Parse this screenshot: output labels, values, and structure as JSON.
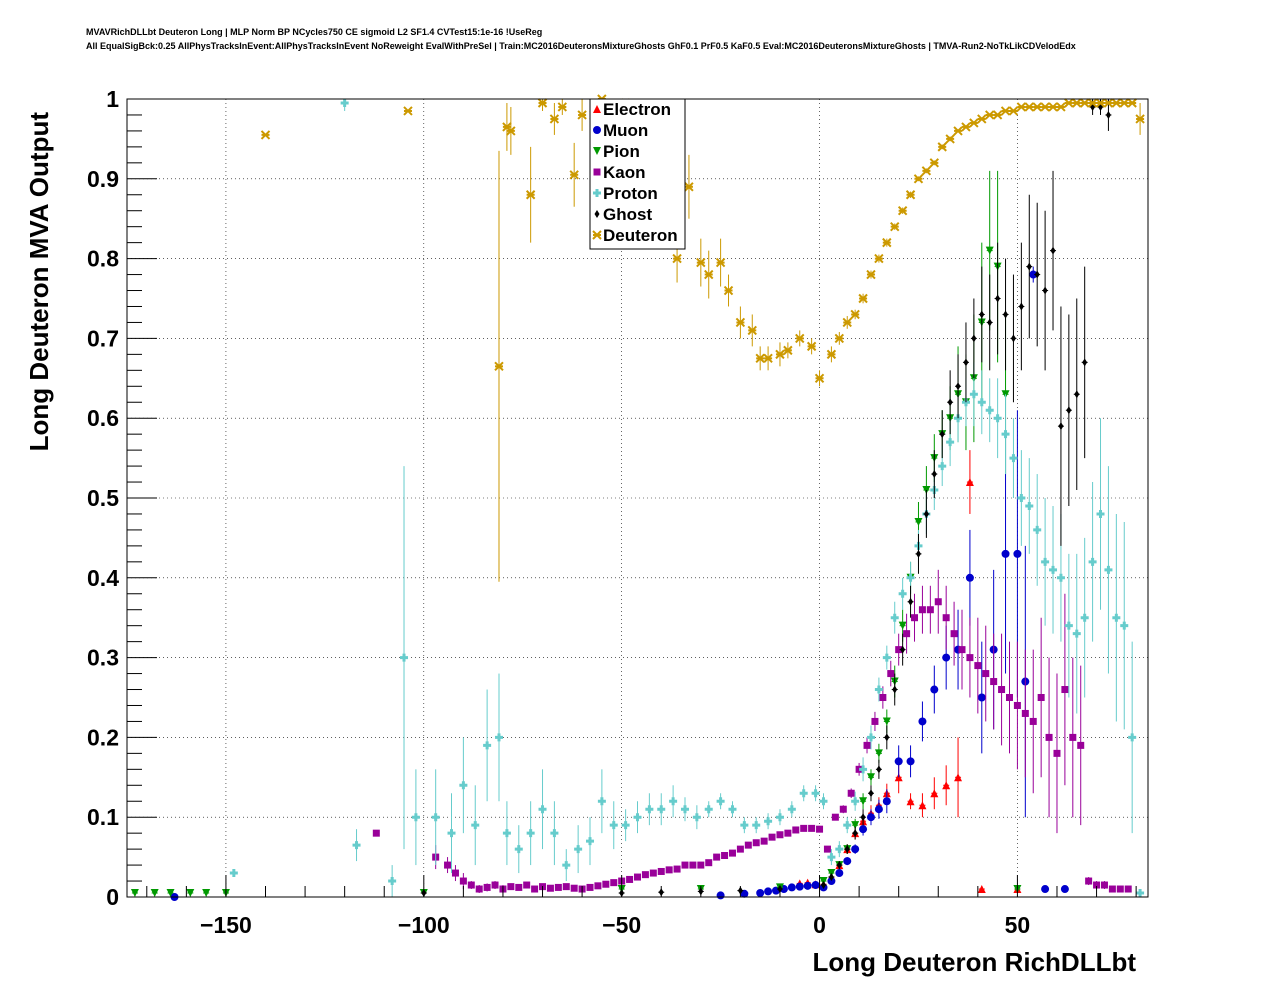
{
  "header": {
    "line1": "MVAVRichDLLbt Deuteron Long | MLP Norm BP NCycles750 CE sigmoid L2 SF1.4 CVTest15:1e-16 !UseReg",
    "line2": "All EqualSigBck:0.25 AllPhysTracksInEvent:AllPhysTracksInEvent NoReweight EvalWithPreSel | Train:MC2016DeuteronsMixtureGhosts GhF0.1 PrF0.5 KaF0.5 Eval:MC2016DeuteronsMixtureGhosts | TMVA-Run2-NoTkLikCDVelodEdx"
  },
  "chart_data": {
    "type": "scatter",
    "xlabel": "Long Deuteron RichDLLbt",
    "ylabel": "Long Deuteron MVA Output",
    "xlim": [
      -175,
      83
    ],
    "ylim": [
      0,
      1
    ],
    "x_ticks": [
      -150,
      -100,
      -50,
      0,
      50
    ],
    "x_tick_labels": [
      "−150",
      "−100",
      "−50",
      "0",
      "50"
    ],
    "y_ticks": [
      0,
      0.1,
      0.2,
      0.3,
      0.4,
      0.5,
      0.6,
      0.7,
      0.8,
      0.9,
      1
    ],
    "y_tick_labels": [
      "0",
      "0.1",
      "0.2",
      "0.3",
      "0.4",
      "0.5",
      "0.6",
      "0.7",
      "0.8",
      "0.9",
      "1"
    ],
    "grid": true,
    "legend_position": "top-center",
    "series": [
      {
        "name": "Electron",
        "color": "#ff0000",
        "marker": "triangle-up",
        "x": [
          -5,
          -3,
          -1,
          1,
          3,
          5,
          7,
          9,
          11,
          13,
          15,
          17,
          20,
          23,
          26,
          29,
          32,
          35,
          38,
          41,
          50
        ],
        "y": [
          0.017,
          0.018,
          0.016,
          0.016,
          0.025,
          0.04,
          0.06,
          0.08,
          0.095,
          0.105,
          0.115,
          0.13,
          0.15,
          0.12,
          0.115,
          0.13,
          0.14,
          0.15,
          0.52,
          0.01,
          0.01
        ],
        "err": [
          0.003,
          0.003,
          0.003,
          0.003,
          0.004,
          0.005,
          0.006,
          0.008,
          0.01,
          0.01,
          0.01,
          0.012,
          0.02,
          0.01,
          0.015,
          0.02,
          0.025,
          0.05,
          0.04,
          0,
          0
        ]
      },
      {
        "name": "Muon",
        "color": "#0000cc",
        "marker": "circle",
        "x": [
          -163,
          -25,
          -19,
          -15,
          -13,
          -11,
          -9,
          -7,
          -5,
          -3,
          -1,
          1,
          3,
          5,
          7,
          9,
          11,
          13,
          15,
          17,
          20,
          23,
          26,
          29,
          32,
          35,
          38,
          41,
          44,
          47,
          50,
          52,
          54,
          57,
          62
        ],
        "y": [
          0,
          0.002,
          0.004,
          0.005,
          0.007,
          0.008,
          0.01,
          0.012,
          0.013,
          0.014,
          0.015,
          0.012,
          0.02,
          0.03,
          0.045,
          0.06,
          0.085,
          0.1,
          0.11,
          0.12,
          0.17,
          0.17,
          0.22,
          0.26,
          0.3,
          0.31,
          0.4,
          0.25,
          0.31,
          0.43,
          0.43,
          0.27,
          0.78,
          0.01,
          0.01
        ],
        "err": [
          0,
          0.001,
          0.001,
          0.001,
          0.001,
          0.001,
          0.002,
          0.002,
          0.002,
          0.002,
          0.002,
          0.002,
          0.003,
          0.004,
          0.005,
          0.006,
          0.008,
          0.01,
          0.012,
          0.015,
          0.02,
          0.02,
          0.025,
          0.03,
          0.04,
          0.05,
          0.06,
          0.07,
          0.1,
          0.15,
          0.18,
          0.17,
          0.01,
          0,
          0
        ]
      },
      {
        "name": "Pion",
        "color": "#009900",
        "marker": "triangle-down",
        "x": [
          -173,
          -168,
          -164,
          -159,
          -155,
          -150,
          -100,
          -50,
          -30,
          -10,
          1,
          3,
          5,
          7,
          9,
          11,
          13,
          15,
          17,
          19,
          21,
          23,
          25,
          27,
          29,
          31,
          33,
          35,
          37,
          39,
          41,
          43,
          45,
          47,
          50
        ],
        "y": [
          0.005,
          0.005,
          0.005,
          0.005,
          0.005,
          0.005,
          0.005,
          0.01,
          0.01,
          0.012,
          0.02,
          0.03,
          0.04,
          0.06,
          0.09,
          0.12,
          0.15,
          0.18,
          0.22,
          0.27,
          0.34,
          0.4,
          0.47,
          0.51,
          0.55,
          0.58,
          0.6,
          0.63,
          0.62,
          0.65,
          0.72,
          0.81,
          0.79,
          0.63,
          0.01
        ],
        "err": [
          0,
          0,
          0,
          0,
          0,
          0,
          0,
          0.002,
          0.002,
          0.002,
          0.003,
          0.004,
          0.005,
          0.006,
          0.008,
          0.01,
          0.01,
          0.012,
          0.015,
          0.02,
          0.02,
          0.02,
          0.025,
          0.03,
          0.03,
          0.03,
          0.04,
          0.06,
          0.06,
          0.08,
          0.1,
          0.1,
          0.12,
          0.1,
          0
        ]
      },
      {
        "name": "Kaon",
        "color": "#990099",
        "marker": "square",
        "x": [
          -112,
          -97,
          -94,
          -92,
          -90,
          -88,
          -86,
          -84,
          -82,
          -80,
          -78,
          -76,
          -74,
          -72,
          -70,
          -68,
          -66,
          -64,
          -62,
          -60,
          -58,
          -56,
          -54,
          -52,
          -50,
          -48,
          -46,
          -44,
          -42,
          -40,
          -38,
          -36,
          -34,
          -32,
          -30,
          -28,
          -26,
          -24,
          -22,
          -20,
          -18,
          -16,
          -14,
          -12,
          -10,
          -8,
          -6,
          -4,
          -2,
          0,
          2,
          4,
          6,
          8,
          10,
          12,
          14,
          16,
          18,
          20,
          22,
          24,
          26,
          28,
          30,
          32,
          34,
          36,
          38,
          40,
          42,
          44,
          46,
          48,
          50,
          52,
          54,
          56,
          58,
          60,
          62,
          64,
          66,
          68,
          70,
          72,
          74,
          76,
          78
        ],
        "y": [
          0.08,
          0.05,
          0.04,
          0.03,
          0.02,
          0.015,
          0.01,
          0.012,
          0.015,
          0.01,
          0.013,
          0.012,
          0.015,
          0.01,
          0.013,
          0.011,
          0.012,
          0.013,
          0.011,
          0.01,
          0.012,
          0.014,
          0.016,
          0.018,
          0.02,
          0.022,
          0.025,
          0.028,
          0.03,
          0.032,
          0.034,
          0.035,
          0.04,
          0.04,
          0.04,
          0.043,
          0.05,
          0.052,
          0.055,
          0.06,
          0.065,
          0.068,
          0.07,
          0.075,
          0.078,
          0.08,
          0.084,
          0.086,
          0.086,
          0.085,
          0.06,
          0.1,
          0.11,
          0.13,
          0.16,
          0.19,
          0.22,
          0.25,
          0.28,
          0.31,
          0.33,
          0.35,
          0.36,
          0.36,
          0.37,
          0.35,
          0.33,
          0.31,
          0.3,
          0.29,
          0.28,
          0.27,
          0.26,
          0.25,
          0.24,
          0.23,
          0.22,
          0.25,
          0.2,
          0.18,
          0.26,
          0.2,
          0.19,
          0.02,
          0.015,
          0.015,
          0.01,
          0.01,
          0.01
        ],
        "err": [
          0,
          0.015,
          0.01,
          0.01,
          0.01,
          0.005,
          0.005,
          0.005,
          0.005,
          0.005,
          0.004,
          0.004,
          0.004,
          0.004,
          0.003,
          0.003,
          0.003,
          0.003,
          0.003,
          0.003,
          0.002,
          0.002,
          0.002,
          0.002,
          0.002,
          0.002,
          0.002,
          0.002,
          0.002,
          0.002,
          0.002,
          0.002,
          0.002,
          0.002,
          0.002,
          0.002,
          0.002,
          0.002,
          0.002,
          0.002,
          0.002,
          0.002,
          0.002,
          0.002,
          0.002,
          0.002,
          0.002,
          0.002,
          0.002,
          0.002,
          0.003,
          0.004,
          0.005,
          0.006,
          0.008,
          0.01,
          0.012,
          0.014,
          0.016,
          0.02,
          0.025,
          0.03,
          0.03,
          0.03,
          0.04,
          0.04,
          0.04,
          0.05,
          0.05,
          0.06,
          0.06,
          0.06,
          0.07,
          0.07,
          0.08,
          0.08,
          0.09,
          0.1,
          0.1,
          0.1,
          0.12,
          0.1,
          0.1,
          0.005,
          0.005,
          0.005,
          0,
          0,
          0
        ]
      },
      {
        "name": "Proton",
        "color": "#66cccc",
        "marker": "plus",
        "x": [
          -148,
          -120,
          -117,
          -108,
          -105,
          -102,
          -97,
          -93,
          -90,
          -87,
          -84,
          -81,
          -79,
          -76,
          -73,
          -70,
          -67,
          -64,
          -61,
          -58,
          -55,
          -52,
          -49,
          -46,
          -43,
          -40,
          -37,
          -34,
          -31,
          -28,
          -25,
          -22,
          -19,
          -16,
          -13,
          -10,
          -7,
          -4,
          -1,
          1,
          3,
          5,
          7,
          9,
          11,
          13,
          15,
          17,
          19,
          21,
          23,
          25,
          27,
          29,
          31,
          33,
          35,
          37,
          39,
          41,
          43,
          45,
          47,
          49,
          51,
          53,
          55,
          57,
          59,
          61,
          63,
          65,
          67,
          69,
          71,
          73,
          75,
          77,
          79,
          81
        ],
        "y": [
          0.03,
          0.995,
          0.065,
          0.02,
          0.3,
          0.1,
          0.1,
          0.08,
          0.14,
          0.09,
          0.19,
          0.2,
          0.08,
          0.06,
          0.08,
          0.11,
          0.08,
          0.04,
          0.06,
          0.07,
          0.12,
          0.09,
          0.09,
          0.1,
          0.11,
          0.11,
          0.12,
          0.11,
          0.1,
          0.11,
          0.12,
          0.11,
          0.09,
          0.09,
          0.095,
          0.1,
          0.11,
          0.13,
          0.13,
          0.12,
          0.05,
          0.06,
          0.09,
          0.12,
          0.16,
          0.2,
          0.26,
          0.3,
          0.35,
          0.38,
          0.4,
          0.44,
          0.48,
          0.51,
          0.54,
          0.57,
          0.6,
          0.62,
          0.63,
          0.62,
          0.61,
          0.6,
          0.58,
          0.55,
          0.5,
          0.49,
          0.46,
          0.42,
          0.41,
          0.4,
          0.34,
          0.33,
          0.35,
          0.42,
          0.48,
          0.41,
          0.35,
          0.34,
          0.2,
          0.005
        ],
        "err": [
          0,
          0.01,
          0.02,
          0.02,
          0.24,
          0.06,
          0.06,
          0.05,
          0.06,
          0.05,
          0.07,
          0.08,
          0.04,
          0.03,
          0.04,
          0.05,
          0.04,
          0.02,
          0.03,
          0.03,
          0.04,
          0.03,
          0.02,
          0.02,
          0.02,
          0.02,
          0.02,
          0.015,
          0.015,
          0.01,
          0.01,
          0.01,
          0.01,
          0.01,
          0.01,
          0.01,
          0.01,
          0.01,
          0.01,
          0.01,
          0.01,
          0.01,
          0.01,
          0.012,
          0.015,
          0.015,
          0.015,
          0.015,
          0.02,
          0.02,
          0.02,
          0.02,
          0.025,
          0.025,
          0.025,
          0.03,
          0.03,
          0.03,
          0.04,
          0.04,
          0.04,
          0.05,
          0.05,
          0.05,
          0.06,
          0.06,
          0.07,
          0.08,
          0.08,
          0.08,
          0.09,
          0.1,
          0.1,
          0.1,
          0.12,
          0.13,
          0.13,
          0.13,
          0.12,
          0
        ]
      },
      {
        "name": "Ghost",
        "color": "#000000",
        "marker": "diamond",
        "x": [
          -100,
          -50,
          -40,
          -30,
          -20,
          -10,
          1,
          3,
          5,
          7,
          9,
          11,
          13,
          15,
          17,
          19,
          21,
          23,
          25,
          27,
          29,
          31,
          33,
          35,
          37,
          39,
          41,
          43,
          45,
          47,
          49,
          51,
          53,
          55,
          57,
          59,
          61,
          63,
          65,
          67,
          69,
          71,
          73
        ],
        "y": [
          0.005,
          0.005,
          0.006,
          0.007,
          0.008,
          0.01,
          0.015,
          0.025,
          0.04,
          0.06,
          0.08,
          0.1,
          0.13,
          0.16,
          0.2,
          0.26,
          0.31,
          0.37,
          0.43,
          0.48,
          0.53,
          0.58,
          0.62,
          0.64,
          0.67,
          0.7,
          0.73,
          0.72,
          0.75,
          0.73,
          0.7,
          0.74,
          0.79,
          0.78,
          0.76,
          0.81,
          0.59,
          0.61,
          0.63,
          0.67,
          0.99,
          0.99,
          0.98
        ],
        "err": [
          0,
          0,
          0,
          0,
          0,
          0.002,
          0.003,
          0.004,
          0.005,
          0.006,
          0.008,
          0.01,
          0.01,
          0.012,
          0.015,
          0.02,
          0.02,
          0.02,
          0.025,
          0.03,
          0.03,
          0.03,
          0.04,
          0.04,
          0.05,
          0.05,
          0.06,
          0.06,
          0.07,
          0.07,
          0.08,
          0.08,
          0.09,
          0.09,
          0.1,
          0.1,
          0.15,
          0.12,
          0.12,
          0.12,
          0.01,
          0.01,
          0.02
        ]
      },
      {
        "name": "Deuteron",
        "color": "#cc9900",
        "marker": "star",
        "x": [
          -140,
          -104,
          -81,
          -79,
          -78,
          -73,
          -70,
          -67,
          -65,
          -62,
          -60,
          -57,
          -55,
          -52,
          -49,
          -46,
          -43,
          -36,
          -33,
          -30,
          -28,
          -25,
          -23,
          -20,
          -17,
          -15,
          -13,
          -10,
          -8,
          -5,
          -2,
          0,
          3,
          5,
          7,
          9,
          11,
          13,
          15,
          17,
          19,
          21,
          23,
          25,
          27,
          29,
          31,
          33,
          35,
          37,
          39,
          41,
          43,
          45,
          47,
          49,
          51,
          53,
          55,
          57,
          59,
          61,
          63,
          65,
          67,
          69,
          71,
          73,
          75,
          77,
          79,
          81
        ],
        "y": [
          0.955,
          0.985,
          0.665,
          0.965,
          0.96,
          0.88,
          0.995,
          0.975,
          0.99,
          0.905,
          0.98,
          0.98,
          1.0,
          0.99,
          0.995,
          0.985,
          0.975,
          0.8,
          0.89,
          0.795,
          0.78,
          0.795,
          0.76,
          0.72,
          0.71,
          0.675,
          0.675,
          0.68,
          0.685,
          0.7,
          0.69,
          0.65,
          0.68,
          0.7,
          0.72,
          0.73,
          0.75,
          0.78,
          0.8,
          0.82,
          0.84,
          0.86,
          0.88,
          0.9,
          0.91,
          0.92,
          0.94,
          0.95,
          0.96,
          0.965,
          0.97,
          0.975,
          0.98,
          0.98,
          0.985,
          0.985,
          0.99,
          0.99,
          0.99,
          0.99,
          0.99,
          0.99,
          0.995,
          0.995,
          0.995,
          0.995,
          0.995,
          0.995,
          0.995,
          0.995,
          0.995,
          0.975
        ],
        "err": [
          0,
          0,
          0.27,
          0.03,
          0.03,
          0.06,
          0.01,
          0.02,
          0.01,
          0.04,
          0.02,
          0.02,
          0,
          0.01,
          0.005,
          0.01,
          0.02,
          0.03,
          0.04,
          0.03,
          0.03,
          0.03,
          0.02,
          0.02,
          0.02,
          0.015,
          0.015,
          0.015,
          0.01,
          0.01,
          0.01,
          0.01,
          0.01,
          0.008,
          0.008,
          0.006,
          0.006,
          0.005,
          0.005,
          0.005,
          0.004,
          0.004,
          0.004,
          0.003,
          0.003,
          0.003,
          0.003,
          0.003,
          0.002,
          0.002,
          0.002,
          0.002,
          0.002,
          0.002,
          0.002,
          0.002,
          0.002,
          0.002,
          0.002,
          0.002,
          0.002,
          0.002,
          0.002,
          0.002,
          0.002,
          0.002,
          0.002,
          0.002,
          0.002,
          0.002,
          0.002,
          0.02
        ]
      }
    ]
  }
}
